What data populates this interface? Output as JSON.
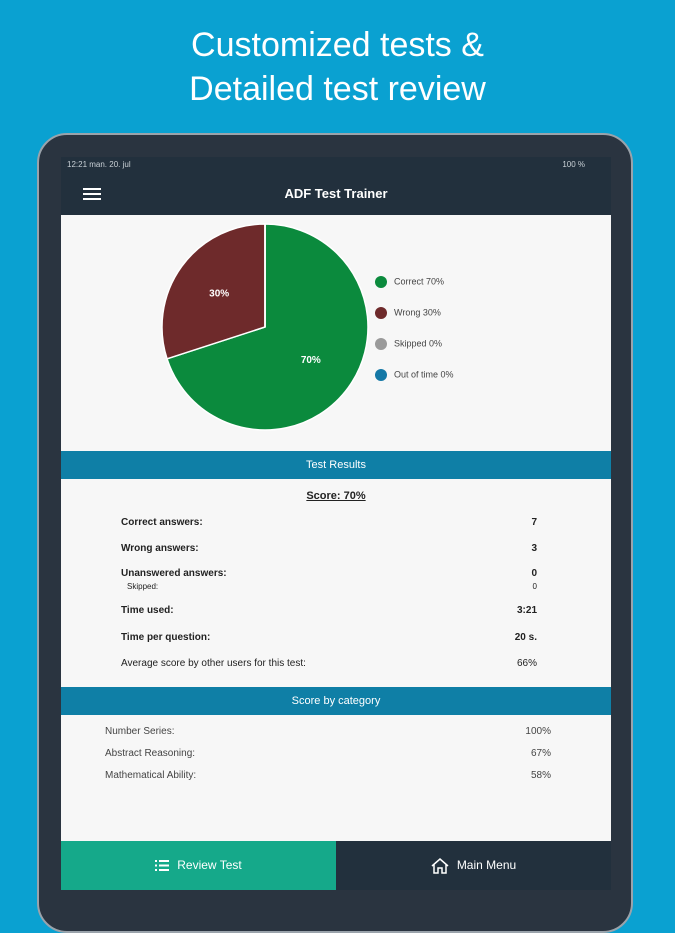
{
  "promo": {
    "title_line_1": "Customized tests &",
    "title_line_2": "Detailed test review"
  },
  "status_bar": {
    "time": "12:21  man. 20. jul",
    "battery": "100 %"
  },
  "app_bar": {
    "title": "ADF  Test Trainer"
  },
  "chart_data": {
    "type": "pie",
    "categories": [
      "Correct 70%",
      "Wrong 30%",
      "Skipped 0%",
      "Out of time 0%"
    ],
    "values": [
      70,
      30,
      0,
      0
    ],
    "value_labels": [
      "70%",
      "30%",
      null,
      null
    ],
    "colors": [
      "#0b8a3d",
      "#6e2a2b",
      "#9a9a9a",
      "#1478a6"
    ]
  },
  "results": {
    "header": "Test Results",
    "score": "Score: 70%",
    "rows": [
      [
        "Correct answers:",
        "7"
      ],
      [
        "Wrong answers:",
        "3"
      ],
      [
        "Unanswered answers:",
        "0"
      ],
      [
        "Skipped:",
        "0"
      ],
      [
        "Time used:",
        "3:21"
      ],
      [
        "Time per question:",
        "20 s."
      ],
      [
        "Average score by other users for this test:",
        "66%"
      ]
    ]
  },
  "categories_section": {
    "header": "Score by category",
    "rows": [
      [
        "Number Series:",
        "100%"
      ],
      [
        "Abstract Reasoning:",
        "67%"
      ],
      [
        "Mathematical Ability:",
        "58%"
      ]
    ]
  },
  "buttons": {
    "review": "Review Test",
    "main_menu": "Main Menu"
  }
}
